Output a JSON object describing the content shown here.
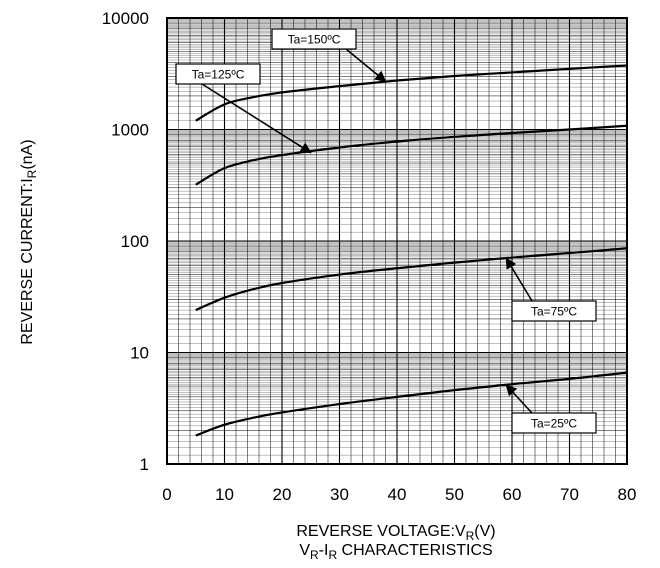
{
  "chart_data": {
    "type": "line",
    "title": "",
    "xlabel": "REVERSE VOLTAGE:V_R(V)",
    "xlabel_parts": {
      "prefix": "REVERSE VOLTAGE:V",
      "sub": "R",
      "suffix": "(V)"
    },
    "ylabel_parts": {
      "prefix": "REVERSE CURRENT:I",
      "sub": "R",
      "suffix": "(nA)"
    },
    "caption_parts": {
      "v": "V",
      "vsub": "R",
      "dash": "-I",
      "isub": "R",
      "rest": " CHARACTERISTICS"
    },
    "xlim": [
      0,
      80
    ],
    "ylim": [
      1,
      10000
    ],
    "yscale": "log",
    "grid": true,
    "x_ticks": [
      "0",
      "10",
      "20",
      "30",
      "40",
      "50",
      "60",
      "70",
      "80"
    ],
    "y_ticks": [
      "1",
      "10",
      "100",
      "1000",
      "10000"
    ],
    "x": [
      5,
      10,
      15,
      20,
      30,
      40,
      50,
      60,
      70,
      80
    ],
    "series": [
      {
        "name": "Ta=150ºC",
        "values": [
          1200,
          1680,
          1950,
          2150,
          2450,
          2750,
          3020,
          3250,
          3500,
          3750
        ]
      },
      {
        "name": "Ta=125ºC",
        "values": [
          320,
          450,
          530,
          590,
          690,
          780,
          860,
          930,
          1000,
          1080
        ]
      },
      {
        "name": "Ta=75ºC",
        "values": [
          24,
          31,
          37,
          42,
          50,
          57,
          64,
          71,
          78,
          86
        ]
      },
      {
        "name": "Ta=25ºC",
        "values": [
          1.8,
          2.25,
          2.6,
          2.9,
          3.45,
          4.0,
          4.6,
          5.2,
          5.8,
          6.6
        ]
      }
    ],
    "annotations": [
      {
        "text": "Ta=150ºC",
        "target_x": 38,
        "target_y": 2700
      },
      {
        "text": "Ta=125ºC",
        "target_x": 25,
        "target_y": 620
      },
      {
        "text": "Ta=75ºC",
        "target_x": 59,
        "target_y": 70
      },
      {
        "text": "Ta=25ºC",
        "target_x": 59,
        "target_y": 5.1
      }
    ]
  }
}
